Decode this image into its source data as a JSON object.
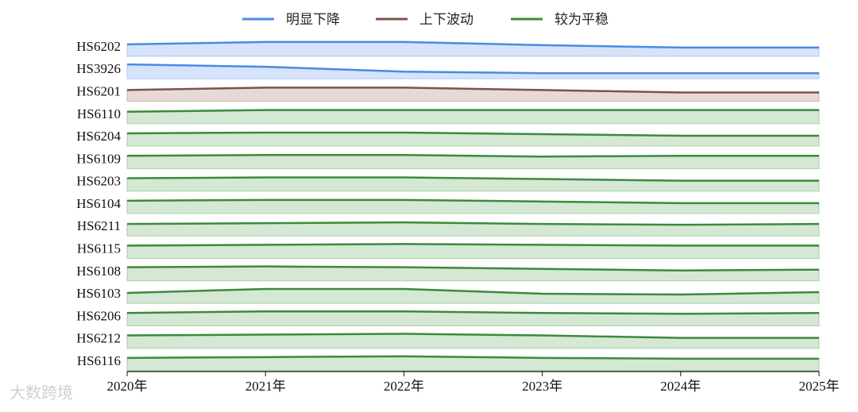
{
  "chart_data": {
    "type": "ridgeline",
    "categories": [
      "2020年",
      "2021年",
      "2022年",
      "2023年",
      "2024年",
      "2025年"
    ],
    "ylim": [
      0,
      28
    ],
    "legend": [
      {
        "name": "明显下降",
        "color": "#4a8ae6",
        "fill": "#d6e3fb"
      },
      {
        "name": "上下波动",
        "color": "#7b5447",
        "fill": "#e7d9d6"
      },
      {
        "name": "较为平稳",
        "color": "#3c8a3c",
        "fill": "#d4e8d4"
      }
    ],
    "series": [
      {
        "name": "HS6202",
        "group": 0,
        "values": [
          15,
          18,
          18,
          14,
          11,
          11
        ]
      },
      {
        "name": "HS3926",
        "group": 0,
        "values": [
          18,
          15,
          9,
          7,
          7,
          7
        ]
      },
      {
        "name": "HS6201",
        "group": 1,
        "values": [
          14,
          17,
          17,
          14,
          11,
          11
        ]
      },
      {
        "name": "HS6110",
        "group": 2,
        "values": [
          15,
          17,
          17,
          17,
          17,
          17
        ]
      },
      {
        "name": "HS6204",
        "group": 2,
        "values": [
          16,
          17,
          17,
          15,
          13,
          13
        ]
      },
      {
        "name": "HS6109",
        "group": 2,
        "values": [
          16,
          17,
          17,
          15,
          16,
          16
        ]
      },
      {
        "name": "HS6203",
        "group": 2,
        "values": [
          16,
          17,
          17,
          15,
          13,
          13
        ]
      },
      {
        "name": "HS6104",
        "group": 2,
        "values": [
          16,
          17,
          17,
          15,
          13,
          13
        ]
      },
      {
        "name": "HS6211",
        "group": 2,
        "values": [
          15,
          16,
          17,
          15,
          14,
          15
        ]
      },
      {
        "name": "HS6115",
        "group": 2,
        "values": [
          16,
          17,
          18,
          17,
          16,
          16
        ]
      },
      {
        "name": "HS6108",
        "group": 2,
        "values": [
          17,
          18,
          17,
          15,
          13,
          14
        ]
      },
      {
        "name": "HS6103",
        "group": 2,
        "values": [
          13,
          18,
          18,
          12,
          11,
          14
        ]
      },
      {
        "name": "HS6206",
        "group": 2,
        "values": [
          16,
          18,
          18,
          16,
          15,
          16
        ]
      },
      {
        "name": "HS6212",
        "group": 2,
        "values": [
          16,
          17,
          18,
          16,
          13,
          13
        ]
      },
      {
        "name": "HS6116",
        "group": 2,
        "values": [
          16,
          17,
          18,
          16,
          15,
          15
        ]
      }
    ],
    "watermark": "大数跨境"
  }
}
